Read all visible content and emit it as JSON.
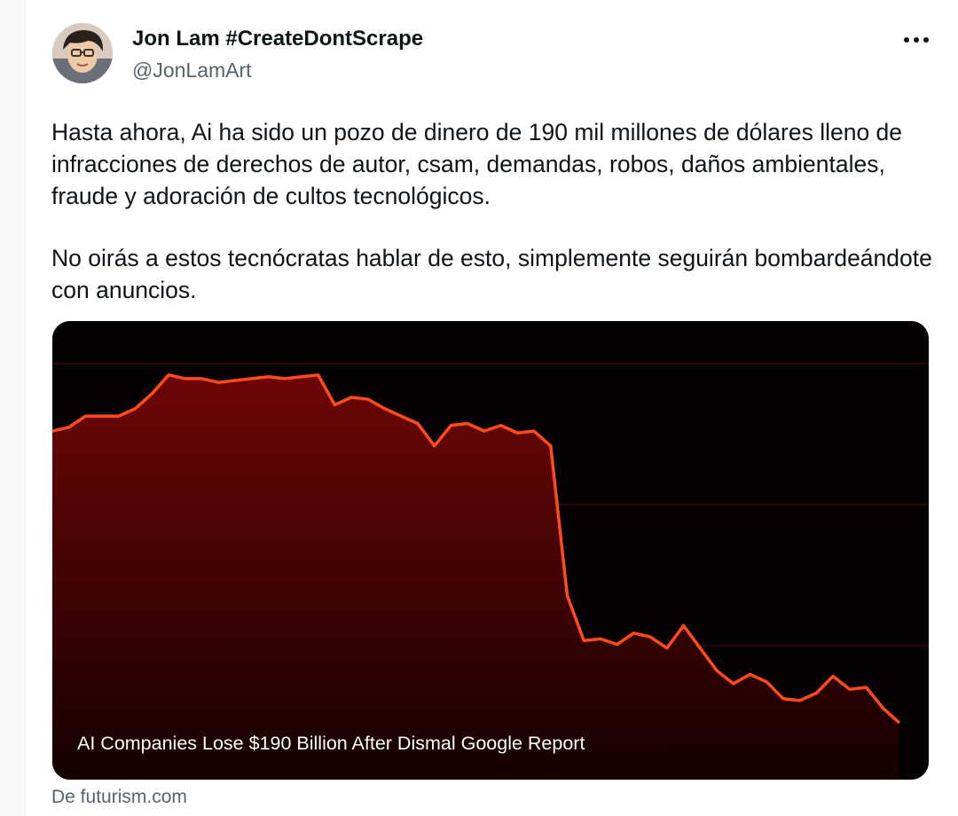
{
  "author": {
    "display_name": "Jon Lam #CreateDontScrape",
    "handle": "@JonLamArt",
    "avatar_icon": "avatar-illustration"
  },
  "more_icon": "more-dots-icon",
  "tweet": {
    "paragraphs": [
      "Hasta ahora, Ai ha sido un pozo de dinero de 190 mil millones de dólares lleno de infracciones de derechos de autor, csam, demandas, robos, daños ambientales, fraude y adoración de cultos tecnológicos.",
      "No oirás a estos tecnócratas hablar de esto, simplemente seguirán bombardeándote con anuncios."
    ]
  },
  "card": {
    "title": "AI Companies Lose $190 Billion After Dismal Google Report",
    "source": "De futurism.com",
    "colors": {
      "background": "#050102",
      "line": "#ff4a1c",
      "fill_top": "#6e0606",
      "fill_bottom": "#150000",
      "grid": "#3a0708"
    },
    "chart_data": {
      "type": "area",
      "title": "",
      "xlabel": "",
      "ylabel": "",
      "grid": true,
      "ylim": [
        0,
        100
      ],
      "values": [
        82,
        83,
        86,
        86,
        86,
        88,
        92,
        97,
        96,
        96,
        95,
        95.5,
        96,
        96.5,
        96,
        96.5,
        97,
        89,
        91,
        90.5,
        88,
        86,
        84,
        78,
        83.5,
        84,
        82,
        83.5,
        81.5,
        82,
        78,
        38,
        26,
        26.5,
        25,
        28,
        27,
        24,
        30,
        24,
        18,
        14.5,
        17,
        15,
        10.5,
        10,
        12,
        16.5,
        13,
        13.5,
        8,
        4
      ]
    }
  }
}
